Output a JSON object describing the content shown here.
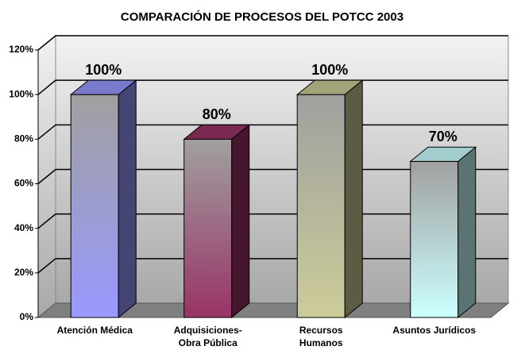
{
  "chart_data": {
    "type": "bar3d",
    "title": "COMPARACIÓN DE PROCESOS DEL POTCC 2003",
    "categories": [
      "Atención Médica",
      "Adquisiciones-\nObra Pública",
      "Recursos\nHumanos",
      "Asuntos Jurídicos"
    ],
    "values": [
      100,
      80,
      100,
      70
    ],
    "value_labels": [
      "100%",
      "80%",
      "100%",
      "70%"
    ],
    "colors": [
      "#9999ff",
      "#993366",
      "#cccc99",
      "#ccffff"
    ],
    "ylim": [
      0,
      120
    ],
    "yticks": [
      {
        "value": 0,
        "label": "0%"
      },
      {
        "value": 20,
        "label": "20%"
      },
      {
        "value": 40,
        "label": "40%"
      },
      {
        "value": 60,
        "label": "60%"
      },
      {
        "value": 80,
        "label": "80%"
      },
      {
        "value": 100,
        "label": "100%"
      },
      {
        "value": 120,
        "label": "120%"
      }
    ],
    "grid": true
  }
}
